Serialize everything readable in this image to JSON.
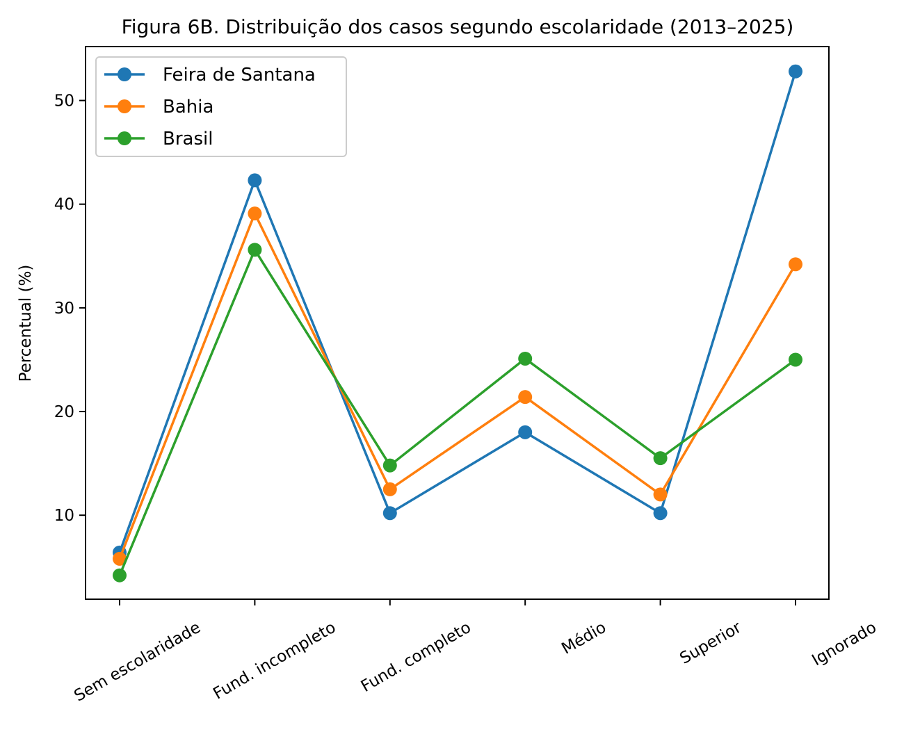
{
  "chart_data": {
    "type": "line",
    "title": "Figura 6B. Distribuição dos casos segundo escolaridade (2013–2025)",
    "xlabel": "",
    "ylabel": "Percentual (%)",
    "categories": [
      "Sem escolaridade",
      "Fund. incompleto",
      "Fund. completo",
      "Médio",
      "Superior",
      "Ignorado"
    ],
    "ylim": [
      1.9,
      55.2
    ],
    "yticks": [
      10,
      20,
      30,
      40,
      50
    ],
    "grid": false,
    "legend_position": "top-left",
    "series": [
      {
        "name": "Feira de Santana",
        "color": "#1f77b4",
        "values": [
          6.4,
          42.3,
          10.2,
          18.0,
          10.2,
          52.8
        ]
      },
      {
        "name": "Bahia",
        "color": "#ff7f0e",
        "values": [
          5.8,
          39.1,
          12.5,
          21.4,
          12.0,
          34.2
        ]
      },
      {
        "name": "Brasil",
        "color": "#2ca02c",
        "values": [
          4.2,
          35.6,
          14.8,
          25.1,
          15.5,
          25.0
        ]
      }
    ]
  }
}
